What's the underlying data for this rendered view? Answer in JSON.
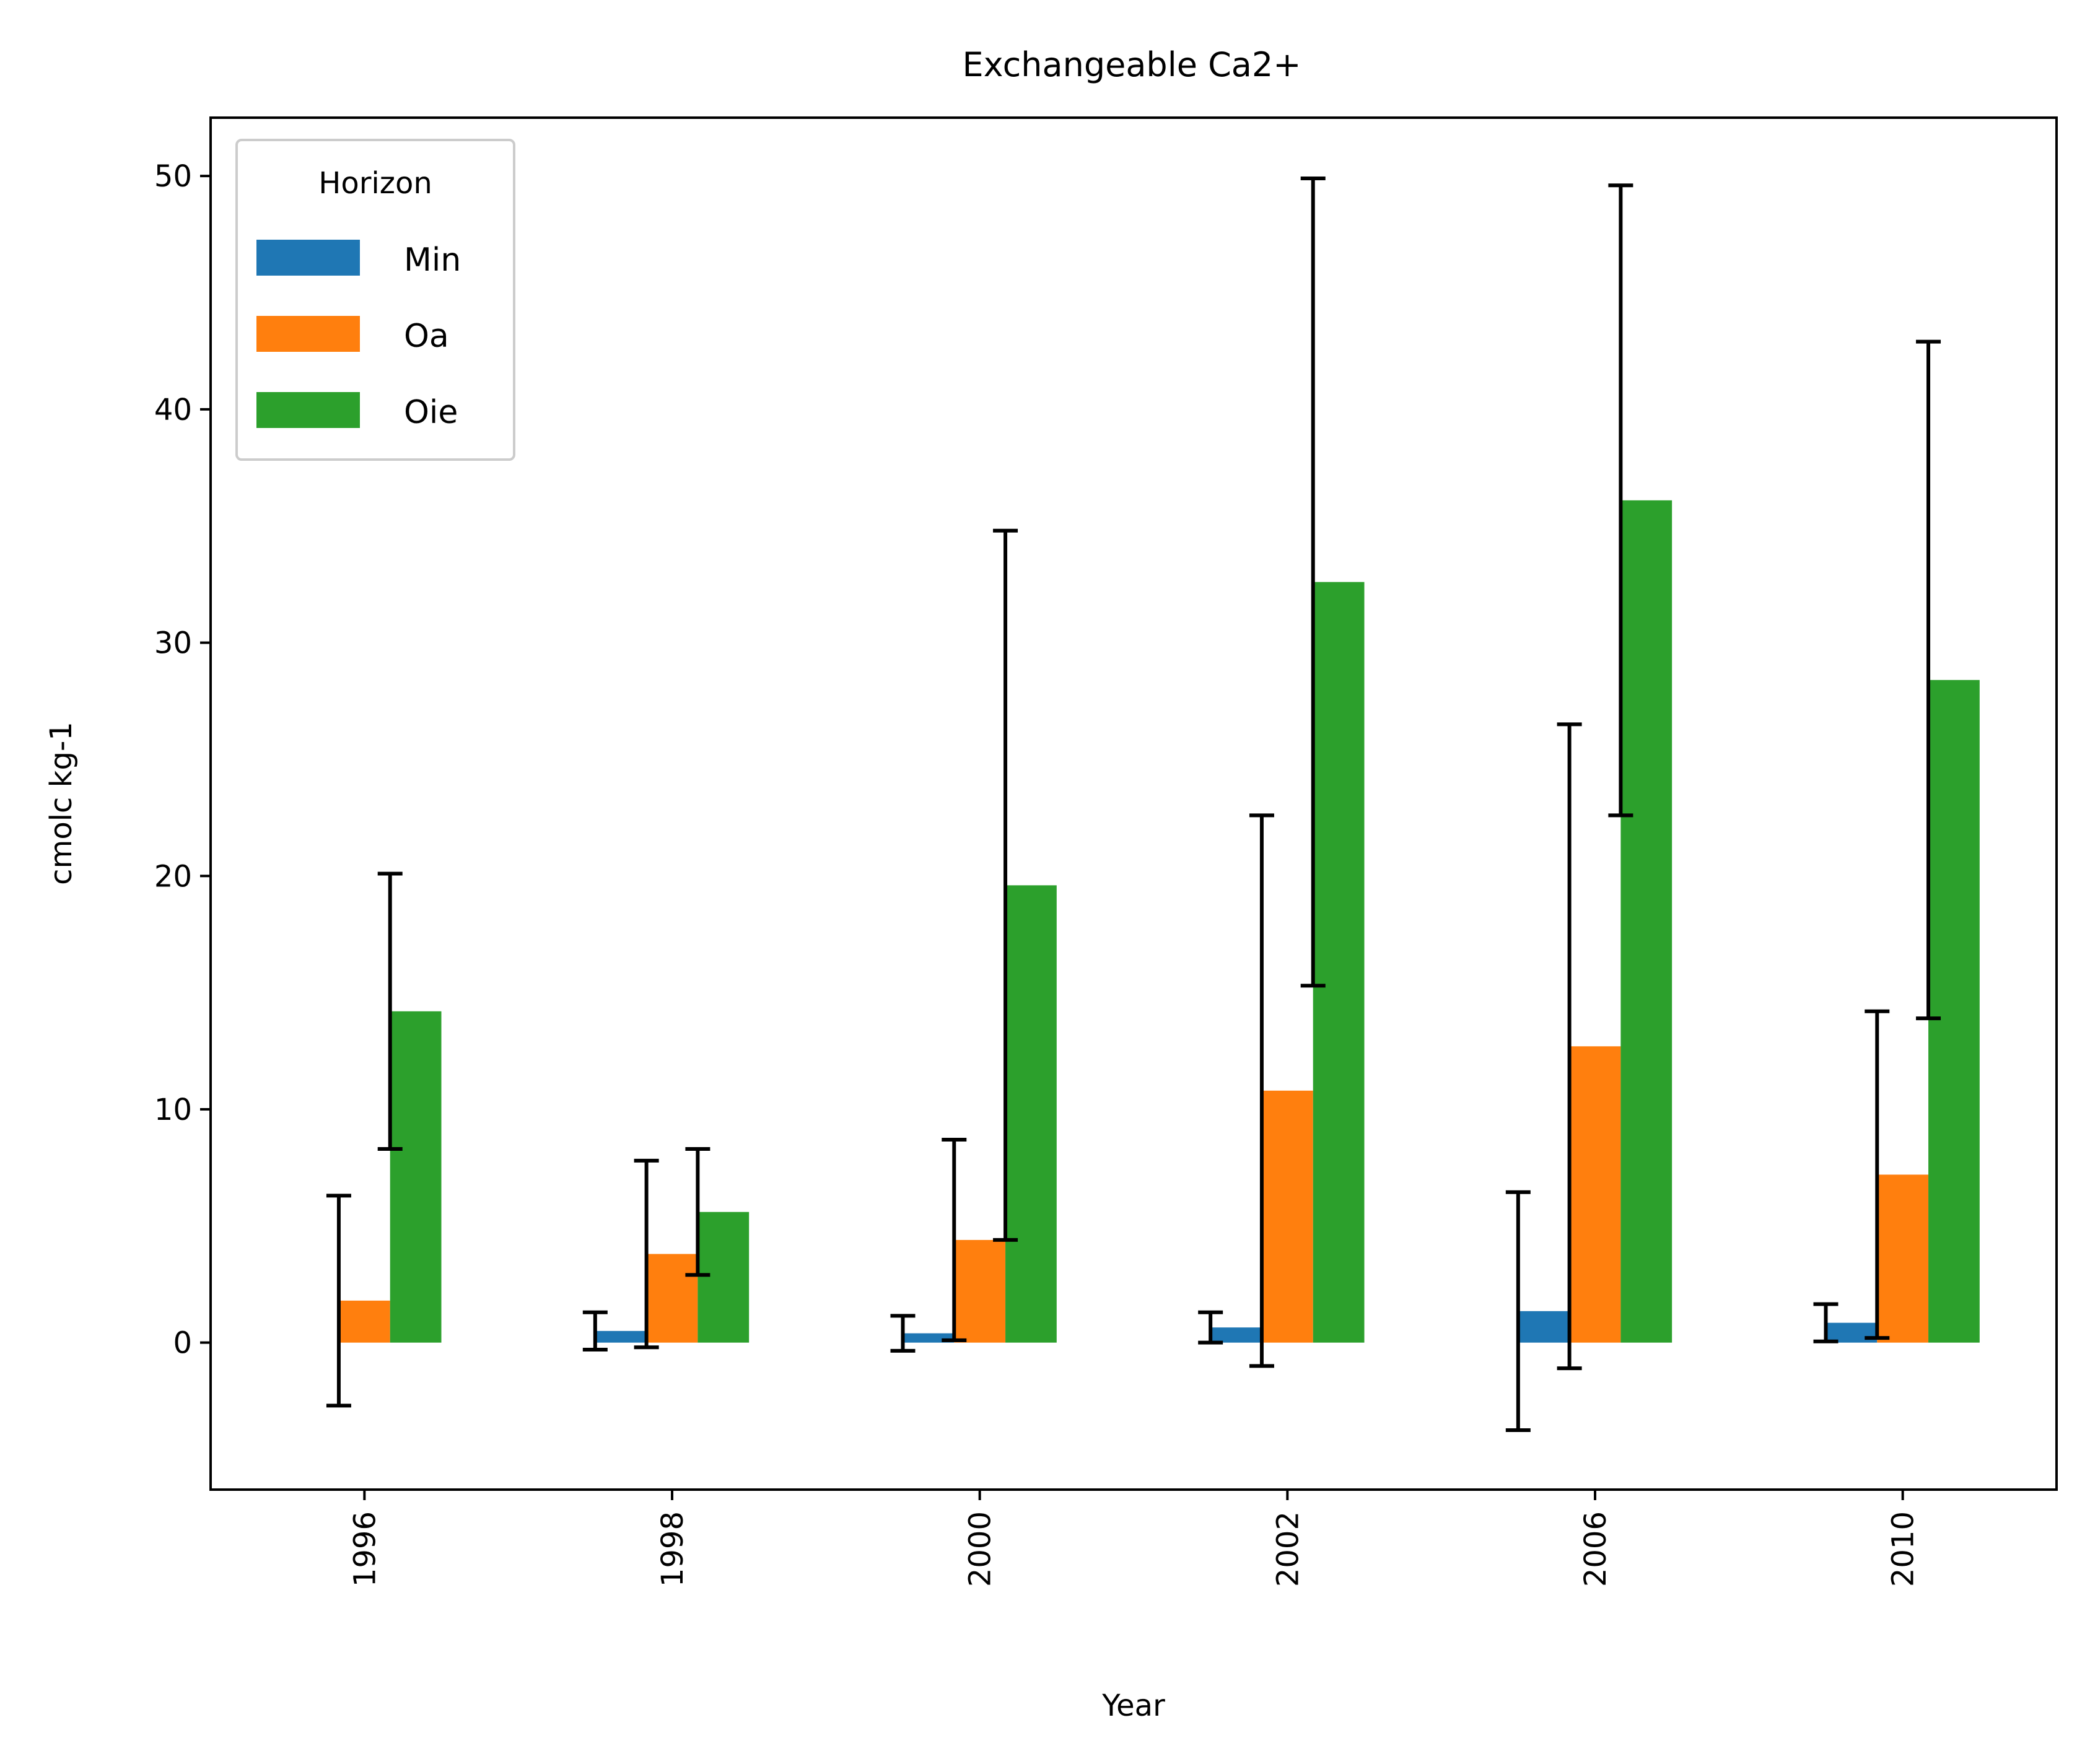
{
  "chart_data": {
    "type": "bar",
    "title": "Exchangeable Ca2+",
    "xlabel": "Year",
    "ylabel": "cmolc kg-1",
    "categories": [
      "1996",
      "1998",
      "2000",
      "2002",
      "2006",
      "2010"
    ],
    "ylim": [
      -6.3,
      52.5
    ],
    "yticks": [
      0,
      10,
      20,
      30,
      40,
      50
    ],
    "grid": false,
    "legend": {
      "title": "Horizon",
      "position": "top-left"
    },
    "series": [
      {
        "name": "Min",
        "color": "#1f77b4",
        "values": [
          null,
          0.5,
          0.4,
          0.65,
          1.35,
          0.85
        ],
        "errors": [
          null,
          0.8,
          0.75,
          0.65,
          5.1,
          0.8
        ]
      },
      {
        "name": "Oa",
        "color": "#ff7f0e",
        "values": [
          1.8,
          3.8,
          4.4,
          10.8,
          12.7,
          7.2
        ],
        "errors": [
          4.5,
          4.0,
          4.3,
          11.8,
          13.8,
          7.0
        ]
      },
      {
        "name": "Oie",
        "color": "#2ca02c",
        "values": [
          14.2,
          5.6,
          19.6,
          32.6,
          36.1,
          28.4
        ],
        "errors": [
          5.9,
          2.7,
          15.2,
          17.3,
          13.5,
          14.5
        ]
      }
    ]
  }
}
